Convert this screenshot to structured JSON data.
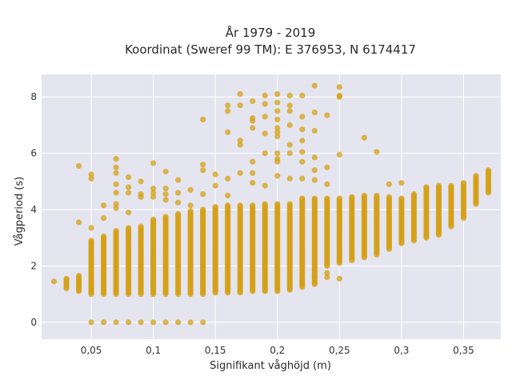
{
  "chart_data": {
    "type": "scatter",
    "title_line1": "År 1979 - 2019",
    "title_line2": "Koordinat (Sweref 99 TM): E 376953, N 6174417",
    "xlabel": "Signifikant våghöjd (m)",
    "ylabel": "Vågperiod (s)",
    "xlim": [
      0.01,
      0.38
    ],
    "ylim": [
      -0.6,
      8.8
    ],
    "xticks": [
      0.05,
      0.1,
      0.15,
      0.2,
      0.25,
      0.3,
      0.35
    ],
    "xtick_labels": [
      "0,05",
      "0,1",
      "0,15",
      "0,2",
      "0,25",
      "0,3",
      "0,35"
    ],
    "yticks": [
      0,
      2,
      4,
      6,
      8
    ],
    "ytick_labels": [
      "0",
      "2",
      "4",
      "6",
      "8"
    ],
    "grid": true,
    "background": "#e5e5ef",
    "marker_color": "#d4a017",
    "columns": [
      {
        "x": 0.02,
        "lo": 1.45,
        "hi": 1.45
      },
      {
        "x": 0.03,
        "lo": 1.2,
        "hi": 1.55
      },
      {
        "x": 0.04,
        "lo": 1.1,
        "hi": 1.65
      },
      {
        "x": 0.05,
        "lo": 1.0,
        "hi": 2.9
      },
      {
        "x": 0.06,
        "lo": 1.0,
        "hi": 3.05
      },
      {
        "x": 0.07,
        "lo": 1.0,
        "hi": 3.25
      },
      {
        "x": 0.08,
        "lo": 1.0,
        "hi": 3.35
      },
      {
        "x": 0.09,
        "lo": 1.0,
        "hi": 3.4
      },
      {
        "x": 0.1,
        "lo": 1.0,
        "hi": 3.65
      },
      {
        "x": 0.11,
        "lo": 1.0,
        "hi": 3.75
      },
      {
        "x": 0.12,
        "lo": 1.0,
        "hi": 3.85
      },
      {
        "x": 0.13,
        "lo": 1.0,
        "hi": 3.95
      },
      {
        "x": 0.14,
        "lo": 1.0,
        "hi": 4.0
      },
      {
        "x": 0.15,
        "lo": 1.05,
        "hi": 4.1
      },
      {
        "x": 0.16,
        "lo": 1.05,
        "hi": 4.15
      },
      {
        "x": 0.17,
        "lo": 1.05,
        "hi": 4.15
      },
      {
        "x": 0.18,
        "lo": 1.1,
        "hi": 4.15
      },
      {
        "x": 0.19,
        "lo": 1.1,
        "hi": 4.2
      },
      {
        "x": 0.2,
        "lo": 1.1,
        "hi": 4.2
      },
      {
        "x": 0.21,
        "lo": 1.15,
        "hi": 4.2
      },
      {
        "x": 0.22,
        "lo": 1.25,
        "hi": 4.4
      },
      {
        "x": 0.23,
        "lo": 1.35,
        "hi": 4.4
      },
      {
        "x": 0.24,
        "lo": 2.0,
        "hi": 4.4
      },
      {
        "x": 0.25,
        "lo": 2.1,
        "hi": 4.4
      },
      {
        "x": 0.26,
        "lo": 2.2,
        "hi": 4.45
      },
      {
        "x": 0.27,
        "lo": 2.3,
        "hi": 4.5
      },
      {
        "x": 0.28,
        "lo": 2.4,
        "hi": 4.5
      },
      {
        "x": 0.29,
        "lo": 2.6,
        "hi": 4.45
      },
      {
        "x": 0.3,
        "lo": 2.8,
        "hi": 4.4
      },
      {
        "x": 0.31,
        "lo": 2.9,
        "hi": 4.55
      },
      {
        "x": 0.32,
        "lo": 3.0,
        "hi": 4.8
      },
      {
        "x": 0.33,
        "lo": 3.1,
        "hi": 4.85
      },
      {
        "x": 0.34,
        "lo": 3.4,
        "hi": 4.85
      },
      {
        "x": 0.35,
        "lo": 3.7,
        "hi": 4.95
      },
      {
        "x": 0.36,
        "lo": 4.2,
        "hi": 5.2
      },
      {
        "x": 0.37,
        "lo": 4.6,
        "hi": 5.4
      }
    ],
    "scatter_points": [
      {
        "x": 0.04,
        "y": 5.55
      },
      {
        "x": 0.04,
        "y": 3.55
      },
      {
        "x": 0.05,
        "y": 5.25
      },
      {
        "x": 0.05,
        "y": 5.1
      },
      {
        "x": 0.05,
        "y": 3.35
      },
      {
        "x": 0.06,
        "y": 3.7
      },
      {
        "x": 0.06,
        "y": 4.15
      },
      {
        "x": 0.07,
        "y": 5.8
      },
      {
        "x": 0.07,
        "y": 5.5
      },
      {
        "x": 0.07,
        "y": 5.3
      },
      {
        "x": 0.07,
        "y": 4.9
      },
      {
        "x": 0.07,
        "y": 4.6
      },
      {
        "x": 0.07,
        "y": 4.2
      },
      {
        "x": 0.07,
        "y": 4.05
      },
      {
        "x": 0.08,
        "y": 5.15
      },
      {
        "x": 0.08,
        "y": 4.8
      },
      {
        "x": 0.08,
        "y": 4.6
      },
      {
        "x": 0.08,
        "y": 3.9
      },
      {
        "x": 0.09,
        "y": 5.0
      },
      {
        "x": 0.09,
        "y": 4.55
      },
      {
        "x": 0.09,
        "y": 4.45
      },
      {
        "x": 0.1,
        "y": 5.65
      },
      {
        "x": 0.1,
        "y": 4.75
      },
      {
        "x": 0.1,
        "y": 4.6
      },
      {
        "x": 0.1,
        "y": 4.45
      },
      {
        "x": 0.11,
        "y": 5.35
      },
      {
        "x": 0.11,
        "y": 4.75
      },
      {
        "x": 0.11,
        "y": 4.55
      },
      {
        "x": 0.11,
        "y": 4.35
      },
      {
        "x": 0.12,
        "y": 5.05
      },
      {
        "x": 0.12,
        "y": 4.6
      },
      {
        "x": 0.12,
        "y": 4.25
      },
      {
        "x": 0.13,
        "y": 4.7
      },
      {
        "x": 0.13,
        "y": 4.15
      },
      {
        "x": 0.14,
        "y": 7.2
      },
      {
        "x": 0.14,
        "y": 5.6
      },
      {
        "x": 0.14,
        "y": 5.4
      },
      {
        "x": 0.14,
        "y": 4.55
      },
      {
        "x": 0.15,
        "y": 5.25
      },
      {
        "x": 0.15,
        "y": 4.85
      },
      {
        "x": 0.16,
        "y": 7.7
      },
      {
        "x": 0.16,
        "y": 7.5
      },
      {
        "x": 0.16,
        "y": 6.75
      },
      {
        "x": 0.16,
        "y": 5.1
      },
      {
        "x": 0.16,
        "y": 4.5
      },
      {
        "x": 0.17,
        "y": 8.1
      },
      {
        "x": 0.17,
        "y": 7.7
      },
      {
        "x": 0.17,
        "y": 6.45
      },
      {
        "x": 0.17,
        "y": 6.3
      },
      {
        "x": 0.17,
        "y": 5.3
      },
      {
        "x": 0.18,
        "y": 7.85
      },
      {
        "x": 0.18,
        "y": 7.25
      },
      {
        "x": 0.18,
        "y": 7.15
      },
      {
        "x": 0.18,
        "y": 6.9
      },
      {
        "x": 0.18,
        "y": 5.7
      },
      {
        "x": 0.18,
        "y": 5.3
      },
      {
        "x": 0.18,
        "y": 4.95
      },
      {
        "x": 0.19,
        "y": 8.05
      },
      {
        "x": 0.19,
        "y": 7.75
      },
      {
        "x": 0.19,
        "y": 7.3
      },
      {
        "x": 0.19,
        "y": 6.7
      },
      {
        "x": 0.19,
        "y": 6.0
      },
      {
        "x": 0.19,
        "y": 4.85
      },
      {
        "x": 0.2,
        "y": 8.1
      },
      {
        "x": 0.2,
        "y": 7.8
      },
      {
        "x": 0.2,
        "y": 7.5
      },
      {
        "x": 0.2,
        "y": 7.2
      },
      {
        "x": 0.2,
        "y": 6.9
      },
      {
        "x": 0.2,
        "y": 6.75
      },
      {
        "x": 0.2,
        "y": 6.6
      },
      {
        "x": 0.2,
        "y": 6.0
      },
      {
        "x": 0.2,
        "y": 5.8
      },
      {
        "x": 0.2,
        "y": 5.7
      },
      {
        "x": 0.2,
        "y": 5.2
      },
      {
        "x": 0.21,
        "y": 8.05
      },
      {
        "x": 0.21,
        "y": 7.7
      },
      {
        "x": 0.21,
        "y": 7.5
      },
      {
        "x": 0.21,
        "y": 7.0
      },
      {
        "x": 0.21,
        "y": 6.3
      },
      {
        "x": 0.21,
        "y": 6.0
      },
      {
        "x": 0.21,
        "y": 5.1
      },
      {
        "x": 0.22,
        "y": 8.05
      },
      {
        "x": 0.22,
        "y": 7.3
      },
      {
        "x": 0.22,
        "y": 6.85
      },
      {
        "x": 0.22,
        "y": 6.45
      },
      {
        "x": 0.22,
        "y": 6.05
      },
      {
        "x": 0.22,
        "y": 5.7
      },
      {
        "x": 0.22,
        "y": 5.1
      },
      {
        "x": 0.23,
        "y": 8.4
      },
      {
        "x": 0.23,
        "y": 7.45
      },
      {
        "x": 0.23,
        "y": 6.8
      },
      {
        "x": 0.23,
        "y": 5.85
      },
      {
        "x": 0.23,
        "y": 5.4
      },
      {
        "x": 0.23,
        "y": 5.05
      },
      {
        "x": 0.23,
        "y": 1.6
      },
      {
        "x": 0.24,
        "y": 7.35
      },
      {
        "x": 0.24,
        "y": 5.5
      },
      {
        "x": 0.24,
        "y": 4.9
      },
      {
        "x": 0.24,
        "y": 1.75
      },
      {
        "x": 0.24,
        "y": 1.6
      },
      {
        "x": 0.25,
        "y": 8.35
      },
      {
        "x": 0.25,
        "y": 8.05
      },
      {
        "x": 0.25,
        "y": 8.0
      },
      {
        "x": 0.25,
        "y": 5.95
      },
      {
        "x": 0.25,
        "y": 1.55
      },
      {
        "x": 0.27,
        "y": 6.55
      },
      {
        "x": 0.28,
        "y": 6.05
      },
      {
        "x": 0.29,
        "y": 4.9
      },
      {
        "x": 0.3,
        "y": 4.95
      }
    ],
    "zero_points_x": [
      0.05,
      0.06,
      0.07,
      0.08,
      0.09,
      0.1,
      0.11,
      0.12,
      0.13,
      0.14
    ]
  }
}
